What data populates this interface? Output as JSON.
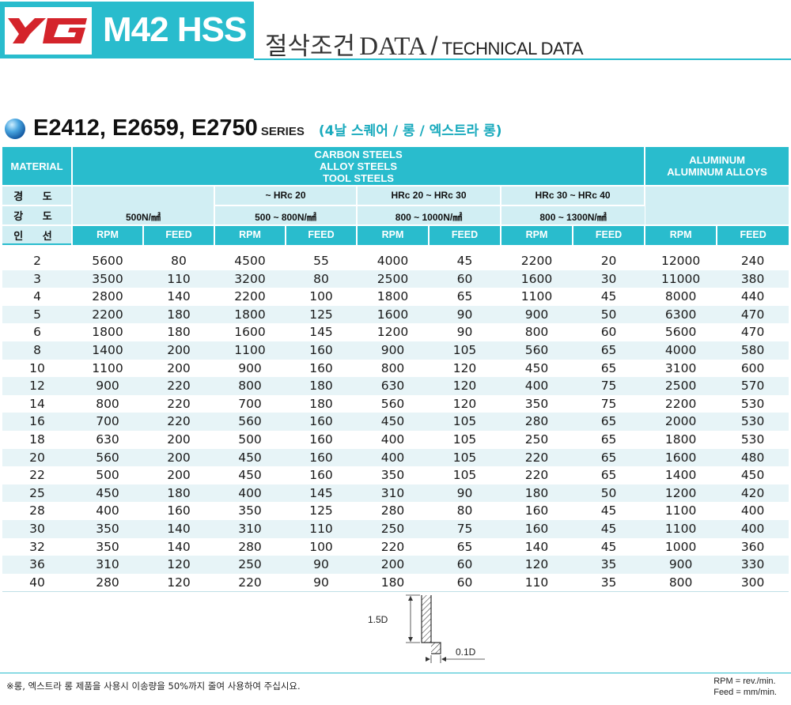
{
  "brand": {
    "logo_text": "YG",
    "product": "M42 HSS",
    "title_kr": "절삭조건",
    "title_data": "DATA",
    "title_slash": "/",
    "title_en": "TECHNICAL DATA"
  },
  "series": {
    "codes": "E2412, E2659, E2750",
    "series_word": "SERIES",
    "subtitle": "(4날 스퀘어 / 롱 / 엑스트라 롱)"
  },
  "table": {
    "material_label": "MATERIAL",
    "steel_group": [
      "CARBON STEELS",
      "ALLOY STEELS",
      "TOOL STEELS"
    ],
    "aluminum_group": [
      "ALUMINUM",
      "ALUMINUM ALLOYS"
    ],
    "row_labels": {
      "hardness": "경 도",
      "strength": "강 도",
      "flutes": "인 선"
    },
    "hardness": [
      "",
      "~ HRc 20",
      "HRc 20 ~ HRc 30",
      "HRc 30 ~ HRc 40",
      ""
    ],
    "strength": [
      "500N/㎟",
      "500 ~ 800N/㎟",
      "800 ~ 1000N/㎟",
      "800 ~ 1300N/㎟",
      ""
    ],
    "col_rpm": "RPM",
    "col_feed": "FEED",
    "rows": [
      [
        "2",
        "5600",
        "80",
        "4500",
        "55",
        "4000",
        "45",
        "2200",
        "20",
        "12000",
        "240"
      ],
      [
        "3",
        "3500",
        "110",
        "3200",
        "80",
        "2500",
        "60",
        "1600",
        "30",
        "11000",
        "380"
      ],
      [
        "4",
        "2800",
        "140",
        "2200",
        "100",
        "1800",
        "65",
        "1100",
        "45",
        "8000",
        "440"
      ],
      [
        "5",
        "2200",
        "180",
        "1800",
        "125",
        "1600",
        "90",
        "900",
        "50",
        "6300",
        "470"
      ],
      [
        "6",
        "1800",
        "180",
        "1600",
        "145",
        "1200",
        "90",
        "800",
        "60",
        "5600",
        "470"
      ],
      [
        "8",
        "1400",
        "200",
        "1100",
        "160",
        "900",
        "105",
        "560",
        "65",
        "4000",
        "580"
      ],
      [
        "10",
        "1100",
        "200",
        "900",
        "160",
        "800",
        "120",
        "450",
        "65",
        "3100",
        "600"
      ],
      [
        "12",
        "900",
        "220",
        "800",
        "180",
        "630",
        "120",
        "400",
        "75",
        "2500",
        "570"
      ],
      [
        "14",
        "800",
        "220",
        "700",
        "180",
        "560",
        "120",
        "350",
        "75",
        "2200",
        "530"
      ],
      [
        "16",
        "700",
        "220",
        "560",
        "160",
        "450",
        "105",
        "280",
        "65",
        "2000",
        "530"
      ],
      [
        "18",
        "630",
        "200",
        "500",
        "160",
        "400",
        "105",
        "250",
        "65",
        "1800",
        "530"
      ],
      [
        "20",
        "560",
        "200",
        "450",
        "160",
        "400",
        "105",
        "220",
        "65",
        "1600",
        "480"
      ],
      [
        "22",
        "500",
        "200",
        "450",
        "160",
        "350",
        "105",
        "220",
        "65",
        "1400",
        "450"
      ],
      [
        "25",
        "450",
        "180",
        "400",
        "145",
        "310",
        "90",
        "180",
        "50",
        "1200",
        "420"
      ],
      [
        "28",
        "400",
        "160",
        "350",
        "125",
        "280",
        "80",
        "160",
        "45",
        "1100",
        "400"
      ],
      [
        "30",
        "350",
        "140",
        "310",
        "110",
        "250",
        "75",
        "160",
        "45",
        "1100",
        "400"
      ],
      [
        "32",
        "350",
        "140",
        "280",
        "100",
        "220",
        "65",
        "140",
        "45",
        "1000",
        "360"
      ],
      [
        "36",
        "310",
        "120",
        "250",
        "90",
        "200",
        "60",
        "120",
        "35",
        "900",
        "330"
      ],
      [
        "40",
        "280",
        "120",
        "220",
        "90",
        "180",
        "60",
        "110",
        "35",
        "800",
        "300"
      ]
    ]
  },
  "diagram": {
    "depth_label": "1.5D",
    "width_label": "0.1D"
  },
  "footer": {
    "note": "※롱, 엑스트라 롱 제품을 사용시 이송량을 50%까지 줄여 사용하여 주십시요.",
    "unit_rpm": "RPM = rev./min.",
    "unit_feed": "Feed = mm/min."
  },
  "colors": {
    "accent": "#29bccd",
    "logo_red": "#d4242b",
    "row_stripe": "#e7f4f7",
    "header_light": "#d1eef3"
  }
}
